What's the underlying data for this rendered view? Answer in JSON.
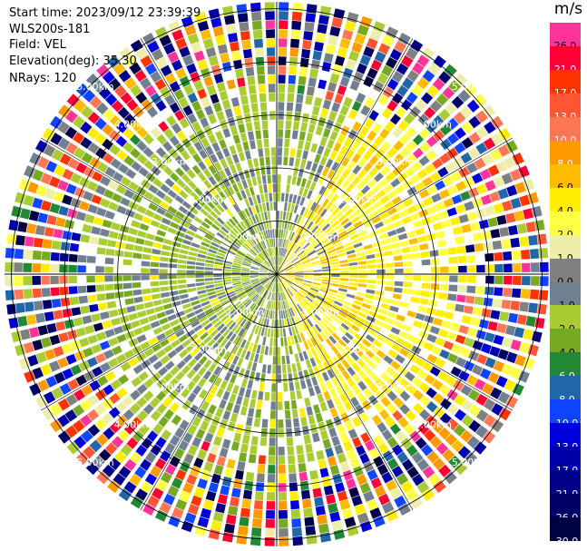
{
  "info": {
    "start_time": "Start time: 2023/09/12 23:39:39",
    "instrument": "WLS200s-181",
    "field": "Field: VEL",
    "elevation": "Elevation(deg): 35.30",
    "nrays": "NRays: 120"
  },
  "colorbar": {
    "unit": "m/s",
    "labels": [
      "26.0",
      "21.0",
      "17.0",
      "13.0",
      "10.0",
      "8.0",
      "6.0",
      "4.0",
      "2.0",
      "1.0",
      "0.0",
      "-1.0",
      "-2.0",
      "-4.0",
      "-6.0",
      "-8.0",
      "-10.0",
      "-13.0",
      "-17.0",
      "-21.0",
      "-26.0",
      "-30.0"
    ],
    "colors": [
      "#ff3399",
      "#ff0033",
      "#ff3300",
      "#ff5533",
      "#ff7755",
      "#ff9900",
      "#ffbb00",
      "#ffee00",
      "#ffff44",
      "#eeeeaa",
      "#808080",
      "#708090",
      "#aacc33",
      "#77aa22",
      "#228833",
      "#2266aa",
      "#1144ff",
      "#0000dd",
      "#0000aa",
      "#000088",
      "#000066",
      "#000044"
    ],
    "label_colors": [
      "#000",
      "#fff",
      "#fff",
      "#fff",
      "#fff",
      "#fff",
      "#000",
      "#000",
      "#000",
      "#000",
      "#000",
      "#000",
      "#000",
      "#000",
      "#fff",
      "#fff",
      "#fff",
      "#fff",
      "#fff",
      "#fff",
      "#fff",
      "#fff"
    ]
  },
  "range_rings": {
    "labels": [
      "1.00km",
      "2.00km",
      "3.00km",
      "4.00km",
      "5.00km"
    ],
    "km": [
      1,
      2,
      3,
      4,
      5
    ]
  },
  "scan": {
    "max_range_km": 5.13,
    "rays": 120,
    "gates": 30
  }
}
